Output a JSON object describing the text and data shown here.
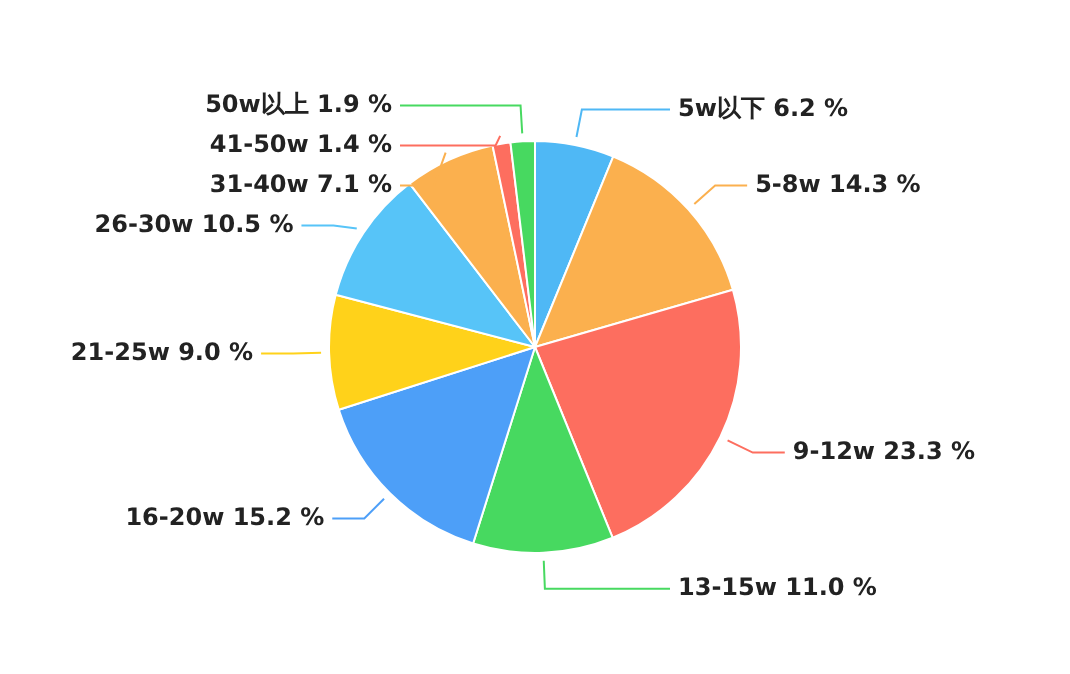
{
  "chart_data": {
    "type": "pie",
    "categories": [
      "5w以下",
      "5-8w",
      "9-12w",
      "13-15w",
      "16-20w",
      "21-25w",
      "26-30w",
      "31-40w",
      "41-50w",
      "50w以上"
    ],
    "values": [
      6.2,
      14.3,
      23.3,
      11.0,
      15.2,
      9.0,
      10.5,
      7.1,
      1.4,
      1.9
    ],
    "value_labels": [
      "6.2 %",
      "14.3 %",
      "23.3 %",
      "11.0 %",
      "15.2 %",
      "9.0 %",
      "10.5 %",
      "7.1 %",
      "1.4 %",
      "1.9 %"
    ],
    "colors": [
      "#4fb8f5",
      "#fbb04e",
      "#fd6e5f",
      "#47d960",
      "#4d9ff8",
      "#ffd21a",
      "#57c4f8",
      "#fbb04e",
      "#fd6e5f",
      "#47d960"
    ]
  }
}
